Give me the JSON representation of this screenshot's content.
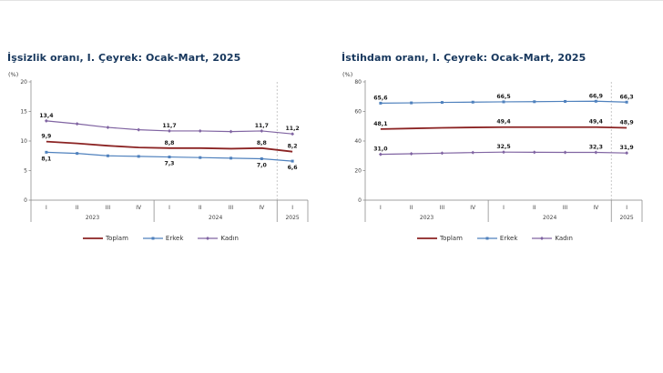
{
  "colors": {
    "title": "#17375d",
    "axis": "#808080",
    "text": "#404040",
    "data_label": "#1a1a1a",
    "separator_dashed": "#b0b0b0",
    "toplam": "#8b2323",
    "erkek": "#4f81bd",
    "kadin": "#8064a2"
  },
  "chart_data": [
    {
      "type": "line",
      "title": "İşsizlik oranı, I. Çeyrek: Ocak-Mart, 2025",
      "unit_label": "(%)",
      "ylim": [
        0,
        20
      ],
      "yticks": [
        0,
        5,
        10,
        15,
        20
      ],
      "categories": [
        "I",
        "II",
        "III",
        "IV",
        "I",
        "II",
        "III",
        "IV",
        "I"
      ],
      "year_groups": [
        {
          "label": "2023",
          "count": 4
        },
        {
          "label": "2024",
          "count": 4
        },
        {
          "label": "2025",
          "count": 1
        }
      ],
      "series": [
        {
          "name": "Toplam",
          "color": "#8b2323",
          "marker": "none",
          "line_width": 1.8,
          "label_pos": "above",
          "values": [
            9.9,
            9.6,
            9.2,
            8.9,
            8.8,
            8.8,
            8.7,
            8.8,
            8.2
          ],
          "point_labels": [
            "9,9",
            "",
            "",
            "",
            "8,8",
            "",
            "",
            "8,8",
            "8,2"
          ]
        },
        {
          "name": "Erkek",
          "color": "#4f81bd",
          "marker": "square",
          "line_width": 1.2,
          "label_pos": "below",
          "values": [
            8.1,
            7.9,
            7.5,
            7.4,
            7.3,
            7.2,
            7.1,
            7.0,
            6.6
          ],
          "point_labels": [
            "8,1",
            "",
            "",
            "",
            "7,3",
            "",
            "",
            "7,0",
            "6,6"
          ]
        },
        {
          "name": "Kadın",
          "color": "#8064a2",
          "marker": "diamond",
          "line_width": 1.2,
          "label_pos": "above",
          "values": [
            13.4,
            12.9,
            12.3,
            11.9,
            11.7,
            11.7,
            11.6,
            11.7,
            11.2
          ],
          "point_labels": [
            "13,4",
            "",
            "",
            "",
            "11,7",
            "",
            "",
            "11,7",
            "11,2"
          ]
        }
      ]
    },
    {
      "type": "line",
      "title": "İstihdam oranı, I. Çeyrek: Ocak-Mart, 2025",
      "unit_label": "(%)",
      "ylim": [
        0,
        80
      ],
      "yticks": [
        0,
        20,
        40,
        60,
        80
      ],
      "categories": [
        "I",
        "II",
        "III",
        "IV",
        "I",
        "II",
        "III",
        "IV",
        "I"
      ],
      "year_groups": [
        {
          "label": "2023",
          "count": 4
        },
        {
          "label": "2024",
          "count": 4
        },
        {
          "label": "2025",
          "count": 1
        }
      ],
      "series": [
        {
          "name": "Toplam",
          "color": "#8b2323",
          "marker": "none",
          "line_width": 1.8,
          "label_pos": "above",
          "values": [
            48.1,
            48.5,
            48.9,
            49.2,
            49.4,
            49.4,
            49.4,
            49.4,
            48.9
          ],
          "point_labels": [
            "48,1",
            "",
            "",
            "",
            "49,4",
            "",
            "",
            "49,4",
            "48,9"
          ]
        },
        {
          "name": "Erkek",
          "color": "#4f81bd",
          "marker": "square",
          "line_width": 1.2,
          "label_pos": "above",
          "values": [
            65.6,
            65.8,
            66.1,
            66.3,
            66.5,
            66.6,
            66.8,
            66.9,
            66.3
          ],
          "point_labels": [
            "65,6",
            "",
            "",
            "",
            "66,5",
            "",
            "",
            "66,9",
            "66,3"
          ]
        },
        {
          "name": "Kadın",
          "color": "#8064a2",
          "marker": "diamond",
          "line_width": 1.2,
          "label_pos": "above",
          "values": [
            31.0,
            31.4,
            31.8,
            32.2,
            32.5,
            32.4,
            32.3,
            32.3,
            31.9
          ],
          "point_labels": [
            "31,0",
            "",
            "",
            "",
            "32,5",
            "",
            "",
            "32,3",
            "31,9"
          ]
        }
      ]
    }
  ]
}
